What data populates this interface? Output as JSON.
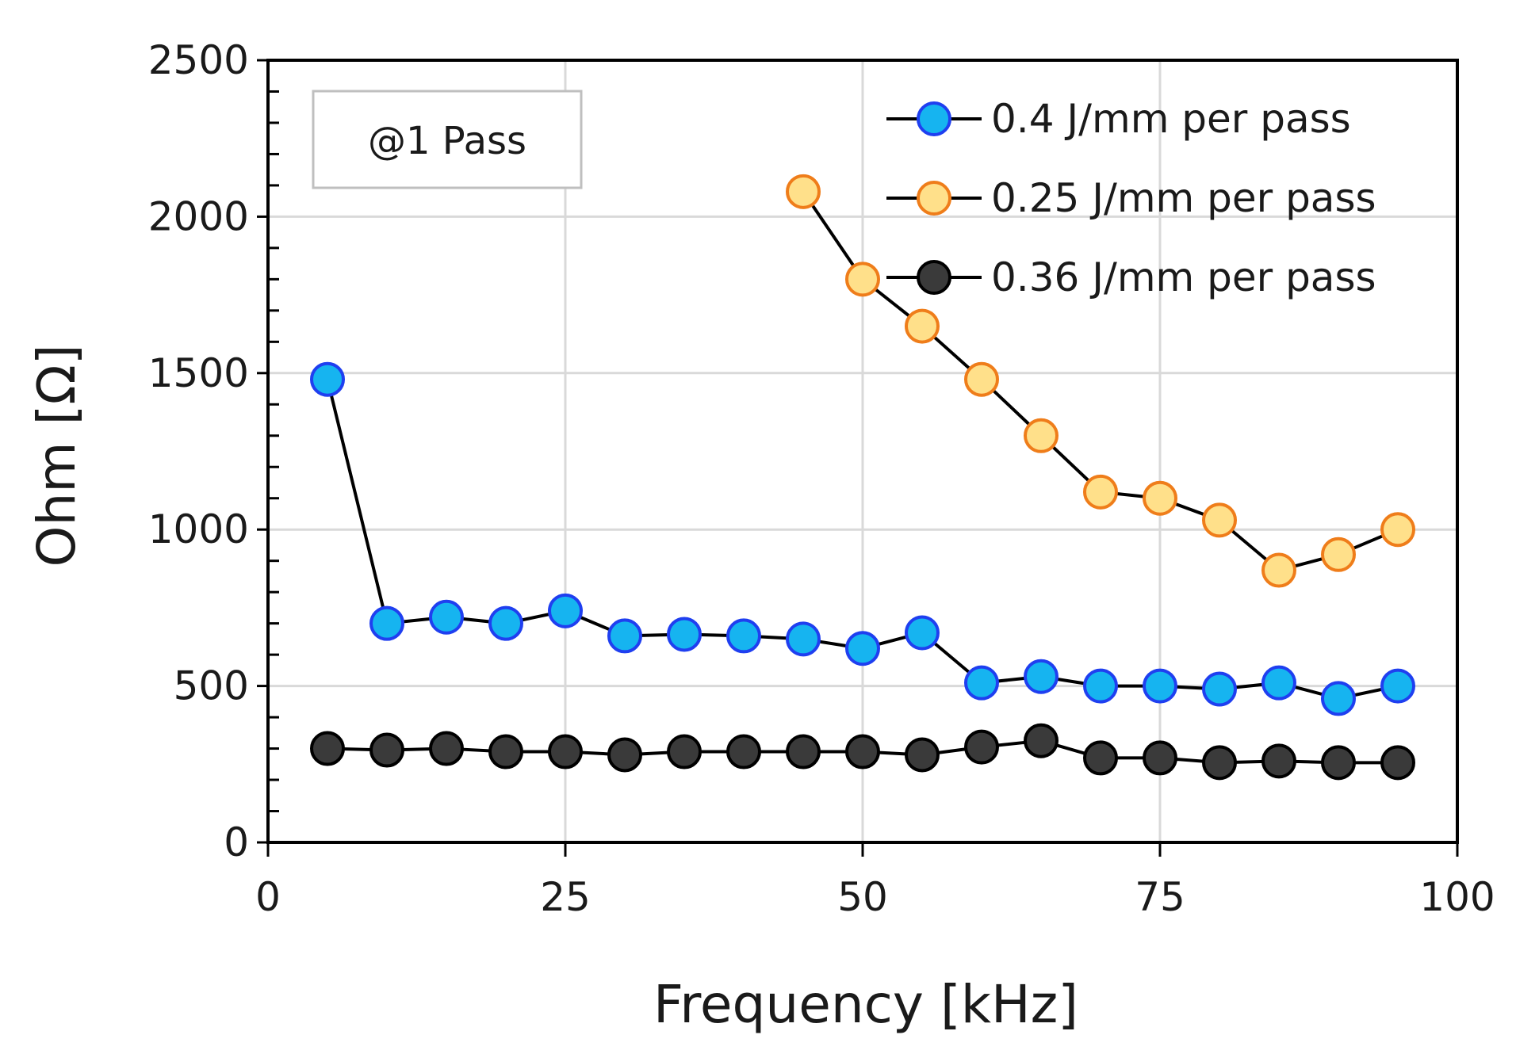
{
  "chart_data": {
    "type": "line",
    "title": "",
    "xlabel": "Frequency [kHz]",
    "ylabel": "Ohm [Ω]",
    "xlim": [
      0,
      100
    ],
    "ylim": [
      0,
      2500
    ],
    "xticks": [
      0,
      25,
      50,
      75,
      100
    ],
    "yticks": [
      0,
      500,
      1000,
      1500,
      2000,
      2500
    ],
    "grid": true,
    "legend_position": "top-right",
    "annotation": "@1 Pass",
    "series": [
      {
        "name": "0.4 J/mm per pass",
        "marker_fill": "#16b4f0",
        "marker_edge": "#1f3ff0",
        "line_color": "#000000",
        "x": [
          5,
          10,
          15,
          20,
          25,
          30,
          35,
          40,
          45,
          50,
          55,
          60,
          65,
          70,
          75,
          80,
          85,
          90,
          95
        ],
        "y": [
          1480,
          700,
          720,
          700,
          740,
          660,
          665,
          660,
          650,
          620,
          670,
          510,
          530,
          500,
          500,
          490,
          510,
          460,
          500
        ]
      },
      {
        "name": "0.25 J/mm per pass",
        "marker_fill": "#ffe08a",
        "marker_edge": "#ef7d1a",
        "line_color": "#000000",
        "x": [
          45,
          50,
          55,
          60,
          65,
          70,
          75,
          80,
          85,
          90,
          95
        ],
        "y": [
          2080,
          1800,
          1650,
          1480,
          1300,
          1120,
          1100,
          1030,
          870,
          920,
          1000
        ]
      },
      {
        "name": "0.36 J/mm per pass",
        "marker_fill": "#3a3a3a",
        "marker_edge": "#000000",
        "line_color": "#000000",
        "x": [
          5,
          10,
          15,
          20,
          25,
          30,
          35,
          40,
          45,
          50,
          55,
          60,
          65,
          70,
          75,
          80,
          85,
          90,
          95
        ],
        "y": [
          300,
          295,
          300,
          290,
          290,
          280,
          290,
          290,
          290,
          290,
          280,
          305,
          325,
          270,
          270,
          255,
          260,
          255,
          255
        ]
      }
    ]
  }
}
